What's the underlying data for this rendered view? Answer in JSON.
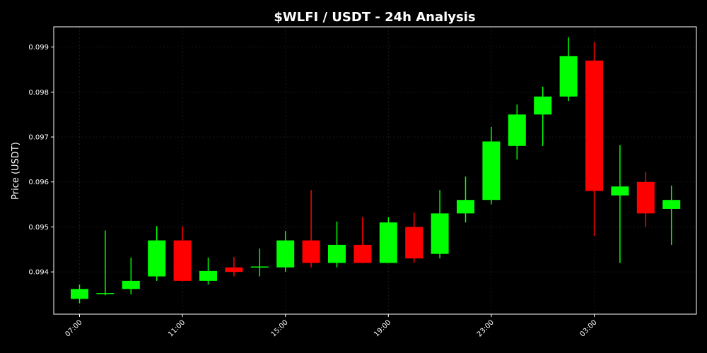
{
  "chart_data": {
    "type": "candlestick",
    "title": "$WLFI / USDT - 24h Analysis",
    "xlabel": "",
    "ylabel": "Price (USDT)",
    "ylim": [
      0.09306,
      0.09945
    ],
    "y_ticks": [
      0.094,
      0.095,
      0.096,
      0.097,
      0.098,
      0.099
    ],
    "x_ticks": [
      {
        "label": "07:00",
        "index": 0
      },
      {
        "label": "11:00",
        "index": 4
      },
      {
        "label": "15:00",
        "index": 8
      },
      {
        "label": "19:00",
        "index": 12
      },
      {
        "label": "23:00",
        "index": 16
      },
      {
        "label": "03:00",
        "index": 20
      }
    ],
    "grid": true,
    "colors": {
      "up": "#00ff00",
      "down": "#ff0000",
      "background": "#000000",
      "text": "#ffffff",
      "grid": "#333333"
    },
    "candles": [
      {
        "time": "07:00",
        "open": 0.0934,
        "high": 0.09372,
        "low": 0.0933,
        "close": 0.09362
      },
      {
        "time": "08:00",
        "open": 0.09351,
        "high": 0.09492,
        "low": 0.09348,
        "close": 0.09353
      },
      {
        "time": "09:00",
        "open": 0.09362,
        "high": 0.09432,
        "low": 0.0935,
        "close": 0.0938
      },
      {
        "time": "10:00",
        "open": 0.0939,
        "high": 0.09502,
        "low": 0.0938,
        "close": 0.0947
      },
      {
        "time": "11:00",
        "open": 0.0947,
        "high": 0.09501,
        "low": 0.09379,
        "close": 0.0938
      },
      {
        "time": "12:00",
        "open": 0.0938,
        "high": 0.09432,
        "low": 0.09372,
        "close": 0.09402
      },
      {
        "time": "13:00",
        "open": 0.0941,
        "high": 0.09433,
        "low": 0.0939,
        "close": 0.094
      },
      {
        "time": "14:00",
        "open": 0.0941,
        "high": 0.09452,
        "low": 0.0939,
        "close": 0.09412
      },
      {
        "time": "15:00",
        "open": 0.0941,
        "high": 0.09491,
        "low": 0.094,
        "close": 0.0947
      },
      {
        "time": "16:00",
        "open": 0.0947,
        "high": 0.09582,
        "low": 0.0941,
        "close": 0.0942
      },
      {
        "time": "17:00",
        "open": 0.0942,
        "high": 0.09512,
        "low": 0.0941,
        "close": 0.0946
      },
      {
        "time": "18:00",
        "open": 0.0946,
        "high": 0.09522,
        "low": 0.0942,
        "close": 0.0942
      },
      {
        "time": "19:00",
        "open": 0.0942,
        "high": 0.09522,
        "low": 0.0942,
        "close": 0.0951
      },
      {
        "time": "20:00",
        "open": 0.095,
        "high": 0.09532,
        "low": 0.0942,
        "close": 0.0943
      },
      {
        "time": "21:00",
        "open": 0.0944,
        "high": 0.09582,
        "low": 0.0943,
        "close": 0.0953
      },
      {
        "time": "22:00",
        "open": 0.0953,
        "high": 0.09612,
        "low": 0.0951,
        "close": 0.0956
      },
      {
        "time": "23:00",
        "open": 0.0956,
        "high": 0.09722,
        "low": 0.0955,
        "close": 0.0969
      },
      {
        "time": "00:00",
        "open": 0.0968,
        "high": 0.09772,
        "low": 0.0965,
        "close": 0.0975
      },
      {
        "time": "01:00",
        "open": 0.0975,
        "high": 0.09812,
        "low": 0.0968,
        "close": 0.0979
      },
      {
        "time": "02:00",
        "open": 0.0979,
        "high": 0.09922,
        "low": 0.0978,
        "close": 0.0988
      },
      {
        "time": "03:00",
        "open": 0.0987,
        "high": 0.09911,
        "low": 0.0948,
        "close": 0.0958
      },
      {
        "time": "04:00",
        "open": 0.0957,
        "high": 0.09682,
        "low": 0.0942,
        "close": 0.0959
      },
      {
        "time": "05:00",
        "open": 0.096,
        "high": 0.09622,
        "low": 0.095,
        "close": 0.0953
      },
      {
        "time": "06:00",
        "open": 0.0954,
        "high": 0.09592,
        "low": 0.0946,
        "close": 0.0956
      }
    ]
  }
}
